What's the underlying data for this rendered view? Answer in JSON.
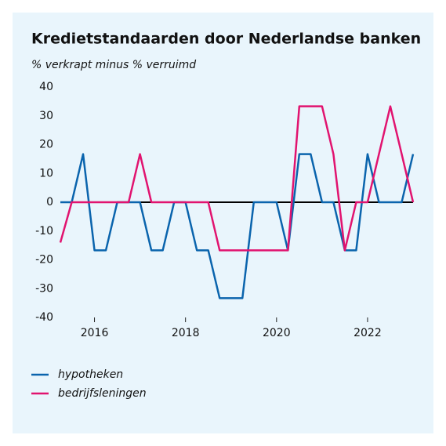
{
  "chart_data": {
    "type": "line",
    "title": "Kredietstandaarden door Nederlandse banken",
    "subtitle": "% verkrapt minus % verruimd",
    "x": [
      2015.25,
      2015.5,
      2015.75,
      2016.0,
      2016.25,
      2016.5,
      2016.75,
      2017.0,
      2017.25,
      2017.5,
      2017.75,
      2018.0,
      2018.25,
      2018.5,
      2018.75,
      2019.0,
      2019.25,
      2019.5,
      2019.75,
      2020.0,
      2020.25,
      2020.5,
      2020.75,
      2021.0,
      2021.25,
      2021.5,
      2021.75,
      2022.0,
      2022.25,
      2022.5,
      2022.75,
      2023.0
    ],
    "series": [
      {
        "name": "hypotheken",
        "color": "#0a64ad",
        "values": [
          0,
          0,
          16.7,
          -16.7,
          -16.7,
          0,
          0,
          0,
          -16.7,
          -16.7,
          0,
          0,
          -16.7,
          -16.7,
          -33.3,
          -33.3,
          -33.3,
          0,
          0,
          0,
          -16.7,
          16.7,
          16.7,
          0,
          0,
          -16.7,
          -16.7,
          16.7,
          0,
          0,
          0,
          16.7
        ]
      },
      {
        "name": "bedrijfsleningen",
        "color": "#e1136f",
        "values": [
          -14,
          0,
          0,
          0,
          0,
          0,
          0,
          16.7,
          0,
          0,
          0,
          0,
          0,
          0,
          -16.7,
          -16.7,
          -16.7,
          -16.7,
          -16.7,
          -16.7,
          -16.7,
          33.3,
          33.3,
          33.3,
          16.7,
          -16.7,
          0,
          0,
          16.7,
          33.3,
          16.7,
          0
        ]
      }
    ],
    "xlim": [
      2015.25,
      2023.0
    ],
    "xticks": [
      2016,
      2018,
      2020,
      2022
    ],
    "ylim": [
      -40,
      40
    ],
    "yticks": [
      -40,
      -30,
      -20,
      -10,
      0,
      10,
      20,
      30,
      40
    ]
  }
}
